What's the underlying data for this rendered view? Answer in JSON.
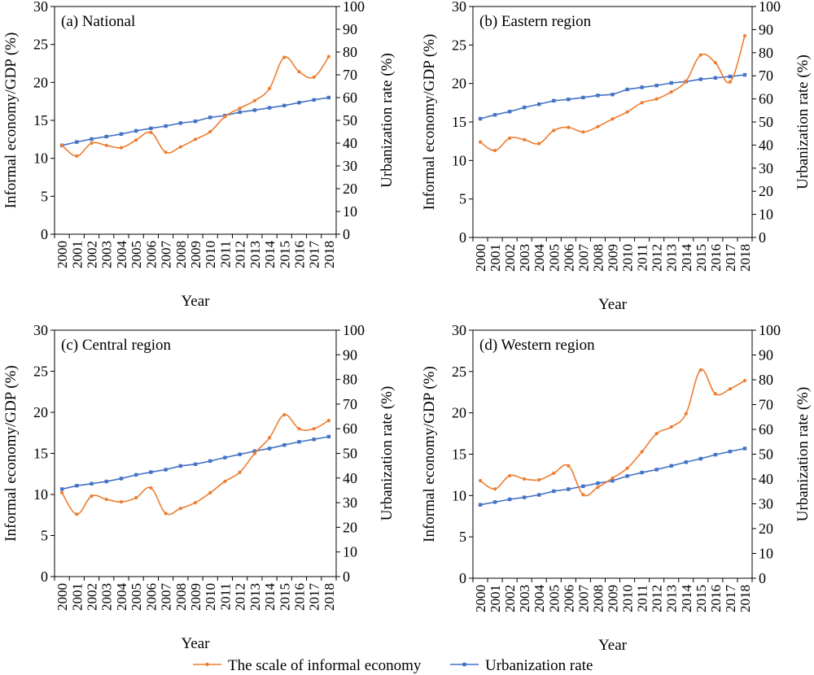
{
  "chart_data": [
    {
      "type": "line",
      "title": "(a) National",
      "xlabel": "Year",
      "ylabel": "Informal economy/GDP (%)",
      "ylabel_right": "Urbanization rate (%)",
      "ylim": [
        0,
        30
      ],
      "ylim_right": [
        0,
        100
      ],
      "yticks": [
        "0",
        "5",
        "10",
        "15",
        "20",
        "25",
        "30"
      ],
      "yticks_right": [
        "0",
        "10",
        "20",
        "30",
        "40",
        "50",
        "60",
        "70",
        "80",
        "90",
        "100"
      ],
      "categories": [
        "2000",
        "2001",
        "2002",
        "2003",
        "2004",
        "2005",
        "2006",
        "2007",
        "2008",
        "2009",
        "2010",
        "2011",
        "2012",
        "2013",
        "2014",
        "2015",
        "2016",
        "2017",
        "2018"
      ],
      "series": [
        {
          "name": "The scale of informal economy",
          "axis": "left",
          "color": "#ED7D31",
          "values": [
            11.7,
            10.3,
            12.0,
            11.7,
            11.4,
            12.4,
            13.4,
            10.8,
            11.5,
            12.5,
            13.5,
            15.5,
            16.6,
            17.6,
            19.2,
            23.3,
            21.4,
            20.7,
            23.4
          ]
        },
        {
          "name": "Urbanization rate",
          "axis": "right",
          "color": "#4472C4",
          "values": [
            39.0,
            40.5,
            41.8,
            42.9,
            44.0,
            45.4,
            46.5,
            47.5,
            48.8,
            49.6,
            51.3,
            52.1,
            53.6,
            54.5,
            55.5,
            56.5,
            57.8,
            59.0,
            60.0
          ]
        }
      ]
    },
    {
      "type": "line",
      "title": "(b) Eastern region",
      "xlabel": "Year",
      "ylabel": "Informal economy/GDP (%)",
      "ylabel_right": "Urbanization rate (%)",
      "ylim": [
        0,
        30
      ],
      "ylim_right": [
        0,
        100
      ],
      "yticks": [
        "0",
        "5",
        "10",
        "15",
        "20",
        "25",
        "30"
      ],
      "yticks_right": [
        "0",
        "10",
        "20",
        "30",
        "40",
        "50",
        "60",
        "70",
        "80",
        "90",
        "100"
      ],
      "categories": [
        "2000",
        "2001",
        "2002",
        "2003",
        "2004",
        "2005",
        "2006",
        "2007",
        "2008",
        "2009",
        "2010",
        "2011",
        "2012",
        "2013",
        "2014",
        "2015",
        "2016",
        "2017",
        "2018"
      ],
      "series": [
        {
          "name": "The scale of informal economy",
          "axis": "left",
          "color": "#ED7D31",
          "values": [
            12.4,
            11.3,
            12.9,
            12.7,
            12.2,
            13.9,
            14.3,
            13.7,
            14.4,
            15.4,
            16.3,
            17.5,
            18.0,
            18.9,
            20.3,
            23.7,
            22.7,
            20.2,
            26.2
          ]
        },
        {
          "name": "Urbanization rate",
          "axis": "right",
          "color": "#4472C4",
          "values": [
            51.4,
            53.1,
            54.5,
            56.3,
            57.7,
            59.2,
            59.8,
            60.6,
            61.5,
            61.9,
            64.1,
            65.0,
            65.8,
            66.9,
            67.5,
            68.5,
            69.1,
            69.7,
            70.4
          ]
        }
      ]
    },
    {
      "type": "line",
      "title": "(c) Central region",
      "xlabel": "Year",
      "ylabel": "Informal economy/GDP (%)",
      "ylabel_right": "Urbanization rate (%)",
      "ylim": [
        0,
        30
      ],
      "ylim_right": [
        0,
        100
      ],
      "yticks": [
        "0",
        "5",
        "10",
        "15",
        "20",
        "25",
        "30"
      ],
      "yticks_right": [
        "0",
        "10",
        "20",
        "30",
        "40",
        "50",
        "60",
        "70",
        "80",
        "90",
        "100"
      ],
      "categories": [
        "2000",
        "2001",
        "2002",
        "2003",
        "2004",
        "2005",
        "2006",
        "2007",
        "2008",
        "2009",
        "2010",
        "2011",
        "2012",
        "2013",
        "2014",
        "2015",
        "2016",
        "2017",
        "2018"
      ],
      "series": [
        {
          "name": "The scale of informal economy",
          "axis": "left",
          "color": "#ED7D31",
          "values": [
            10.2,
            7.6,
            9.8,
            9.4,
            9.1,
            9.6,
            10.8,
            7.7,
            8.3,
            9.0,
            10.2,
            11.6,
            12.7,
            15.0,
            16.9,
            19.7,
            18.0,
            18.0,
            19.0
          ]
        },
        {
          "name": "Urbanization rate",
          "axis": "right",
          "color": "#4472C4",
          "values": [
            35.5,
            36.9,
            37.7,
            38.6,
            39.8,
            41.3,
            42.4,
            43.4,
            44.9,
            45.6,
            46.9,
            48.3,
            49.6,
            50.9,
            52.0,
            53.4,
            54.7,
            55.7,
            56.8
          ]
        }
      ]
    },
    {
      "type": "line",
      "title": "(d) Western region",
      "xlabel": "Year",
      "ylabel": "Informal economy/GDP (%)",
      "ylabel_right": "Urbanization rate (%)",
      "ylim": [
        0,
        30
      ],
      "ylim_right": [
        0,
        100
      ],
      "yticks": [
        "0",
        "5",
        "10",
        "15",
        "20",
        "25",
        "30"
      ],
      "yticks_right": [
        "0",
        "10",
        "20",
        "30",
        "40",
        "50",
        "60",
        "70",
        "80",
        "90",
        "100"
      ],
      "categories": [
        "2000",
        "2001",
        "2002",
        "2003",
        "2004",
        "2005",
        "2006",
        "2007",
        "2008",
        "2009",
        "2010",
        "2011",
        "2012",
        "2013",
        "2014",
        "2015",
        "2016",
        "2017",
        "2018"
      ],
      "series": [
        {
          "name": "The scale of informal economy",
          "axis": "left",
          "color": "#ED7D31",
          "values": [
            11.8,
            10.8,
            12.4,
            12.0,
            11.9,
            12.7,
            13.6,
            10.1,
            11.0,
            12.1,
            13.3,
            15.3,
            17.5,
            18.3,
            19.9,
            25.2,
            22.3,
            22.9,
            23.9
          ]
        },
        {
          "name": "Urbanization rate",
          "axis": "right",
          "color": "#4472C4",
          "values": [
            29.6,
            30.7,
            31.8,
            32.6,
            33.6,
            35.1,
            35.9,
            37.1,
            38.3,
            39.3,
            41.2,
            42.6,
            43.8,
            45.3,
            46.8,
            48.2,
            49.8,
            51.1,
            52.3
          ]
        }
      ]
    }
  ],
  "legend": {
    "placement": "bottom",
    "items": [
      {
        "label": "The scale of informal economy",
        "color": "#ED7D31"
      },
      {
        "label": "Urbanization rate",
        "color": "#4472C4"
      }
    ]
  }
}
